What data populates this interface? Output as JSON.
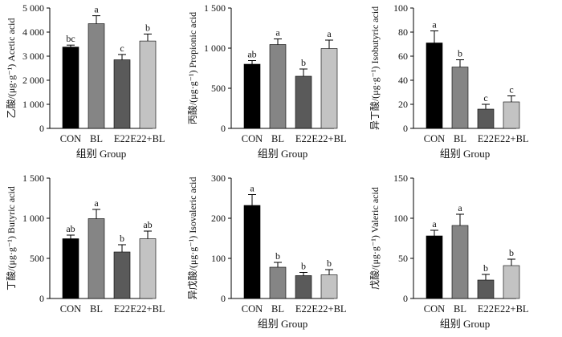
{
  "colors": {
    "CON": "#000000",
    "BL": "#858585",
    "E22": "#5a5a5a",
    "E22+BL": "#c3c3c3"
  },
  "chart_data": [
    {
      "type": "bar",
      "ylabel": "乙酸/(μg·g⁻¹) Acetic acid",
      "xlabel": "组别 Group",
      "categories": [
        "CON",
        "BL",
        "E22",
        "E22+BL"
      ],
      "values": [
        3380,
        4350,
        2850,
        3630
      ],
      "errors": [
        80,
        330,
        220,
        290
      ],
      "significance": [
        "bc",
        "a",
        "c",
        "b"
      ],
      "ylim": [
        0,
        5000
      ],
      "yticks": [
        0,
        1000,
        2000,
        3000,
        4000,
        5000
      ],
      "ytick_labels": [
        "0",
        "1 000",
        "2 000",
        "3 000",
        "4 000",
        "5 000"
      ]
    },
    {
      "type": "bar",
      "ylabel": "丙酸/(μg·g⁻¹) Propionic acid",
      "xlabel": "组别 Group",
      "categories": [
        "CON",
        "BL",
        "E22",
        "E22+BL"
      ],
      "values": [
        800,
        1045,
        650,
        995
      ],
      "errors": [
        45,
        70,
        90,
        105
      ],
      "significance": [
        "ab",
        "a",
        "b",
        "a"
      ],
      "ylim": [
        0,
        1500
      ],
      "yticks": [
        0,
        500,
        1000,
        1500
      ],
      "ytick_labels": [
        "0",
        "500",
        "1 000",
        "1 500"
      ]
    },
    {
      "type": "bar",
      "ylabel": "异丁酸/(μg·g⁻¹) Isobutyric acid",
      "xlabel": "组别 Group",
      "categories": [
        "CON",
        "BL",
        "E22",
        "E22+BL"
      ],
      "values": [
        71,
        51,
        16,
        22
      ],
      "errors": [
        10,
        6,
        4,
        5
      ],
      "significance": [
        "a",
        "b",
        "c",
        "c"
      ],
      "ylim": [
        0,
        100
      ],
      "yticks": [
        0,
        20,
        40,
        60,
        80,
        100
      ],
      "ytick_labels": [
        "0",
        "20",
        "40",
        "60",
        "80",
        "100"
      ]
    },
    {
      "type": "bar",
      "ylabel": "丁酸/(μg·g⁻¹) Butyric acid",
      "xlabel": "",
      "categories": [
        "CON",
        "BL",
        "E22",
        "E22+BL"
      ],
      "values": [
        745,
        995,
        580,
        745
      ],
      "errors": [
        45,
        115,
        90,
        95
      ],
      "significance": [
        "ab",
        "a",
        "b",
        "ab"
      ],
      "ylim": [
        0,
        1500
      ],
      "yticks": [
        0,
        500,
        1000,
        1500
      ],
      "ytick_labels": [
        "0",
        "500",
        "1 000",
        "1 500"
      ]
    },
    {
      "type": "bar",
      "ylabel": "异戊酸/(μg·g⁻¹) Isovaleric acid",
      "xlabel": "组别 Group",
      "categories": [
        "CON",
        "BL",
        "E22",
        "E22+BL"
      ],
      "values": [
        232,
        78,
        57,
        59
      ],
      "errors": [
        27,
        12,
        8,
        13
      ],
      "significance": [
        "a",
        "b",
        "b",
        "b"
      ],
      "ylim": [
        0,
        300
      ],
      "yticks": [
        0,
        100,
        200,
        300
      ],
      "ytick_labels": [
        "0",
        "100",
        "200",
        "300"
      ]
    },
    {
      "type": "bar",
      "ylabel": "戊酸/(μg·g⁻¹) Valeric acid",
      "xlabel": "组别 Group",
      "categories": [
        "CON",
        "BL",
        "E22",
        "E22+BL"
      ],
      "values": [
        78,
        91,
        23,
        41
      ],
      "errors": [
        7,
        14,
        7,
        8
      ],
      "significance": [
        "a",
        "a",
        "b",
        "b"
      ],
      "ylim": [
        0,
        150
      ],
      "yticks": [
        0,
        50,
        100,
        150
      ],
      "ytick_labels": [
        "0",
        "50",
        "100",
        "150"
      ]
    }
  ]
}
